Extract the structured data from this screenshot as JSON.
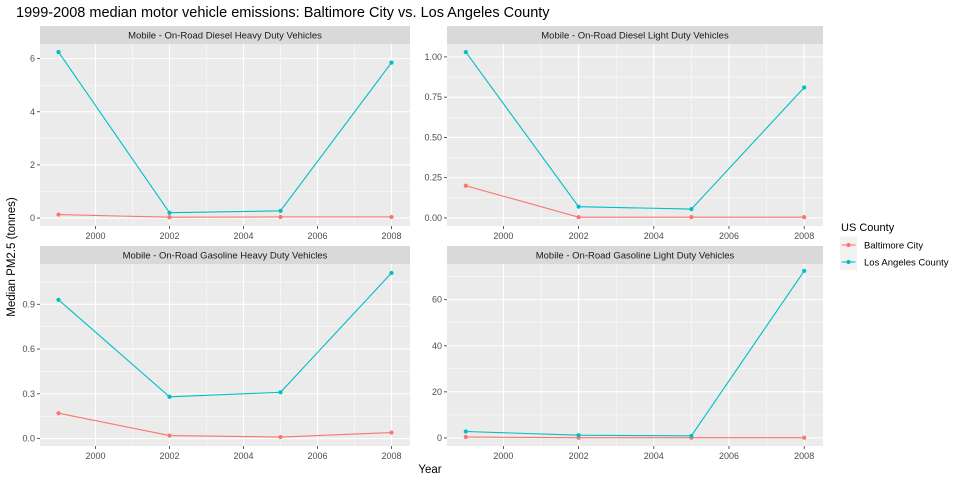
{
  "chart_data": {
    "type": "line",
    "title": "1999-2008 median motor vehicle emissions: Baltimore City vs. Los Angeles County",
    "xlabel": "Year",
    "ylabel": "Median PM2.5 (tonnes)",
    "grid": true,
    "legend": {
      "title": "US County",
      "placement": "right",
      "entries": [
        "Baltimore City",
        "Los Angeles County"
      ]
    },
    "colors": {
      "Baltimore City": "#F8766D",
      "Los Angeles County": "#00BFC4"
    },
    "x": [
      1999,
      2002,
      2005,
      2008
    ],
    "xlim": [
      1998.5,
      2008.5
    ],
    "xticks": [
      2000,
      2002,
      2004,
      2006,
      2008
    ],
    "panels": [
      {
        "strip": "Mobile - On-Road Diesel Heavy Duty Vehicles",
        "ylim": [
          -0.3,
          6.55
        ],
        "yticks": [
          0,
          2,
          4,
          6
        ],
        "ytick_labels": [
          "0",
          "2",
          "4",
          "6"
        ],
        "series": [
          {
            "name": "Baltimore City",
            "values": [
              0.13,
              0.03,
              0.04,
              0.04
            ]
          },
          {
            "name": "Los Angeles County",
            "values": [
              6.25,
              0.2,
              0.27,
              5.85
            ]
          }
        ]
      },
      {
        "strip": "Mobile - On-Road Diesel Light Duty Vehicles",
        "ylim": [
          -0.05,
          1.08
        ],
        "yticks": [
          0,
          0.25,
          0.5,
          0.75,
          1.0
        ],
        "ytick_labels": [
          "0.00",
          "0.25",
          "0.50",
          "0.75",
          "1.00"
        ],
        "series": [
          {
            "name": "Baltimore City",
            "values": [
              0.2,
              0.005,
              0.005,
              0.005
            ]
          },
          {
            "name": "Los Angeles County",
            "values": [
              1.03,
              0.07,
              0.055,
              0.81
            ]
          }
        ]
      },
      {
        "strip": "Mobile - On-Road Gasoline Heavy Duty Vehicles",
        "ylim": [
          -0.05,
          1.17
        ],
        "yticks": [
          0,
          0.3,
          0.6,
          0.9
        ],
        "ytick_labels": [
          "0.0",
          "0.3",
          "0.6",
          "0.9"
        ],
        "series": [
          {
            "name": "Baltimore City",
            "values": [
              0.17,
              0.02,
              0.01,
              0.04
            ]
          },
          {
            "name": "Los Angeles County",
            "values": [
              0.93,
              0.28,
              0.31,
              1.11
            ]
          }
        ]
      },
      {
        "strip": "Mobile - On-Road Gasoline Light Duty Vehicles",
        "ylim": [
          -3.5,
          75.5
        ],
        "yticks": [
          0,
          20,
          40,
          60
        ],
        "ytick_labels": [
          "0",
          "20",
          "40",
          "60"
        ],
        "series": [
          {
            "name": "Baltimore City",
            "values": [
              0.4,
              0.1,
              0.1,
              0.1
            ]
          },
          {
            "name": "Los Angeles County",
            "values": [
              2.8,
              1.2,
              0.9,
              72.5
            ]
          }
        ]
      }
    ]
  }
}
